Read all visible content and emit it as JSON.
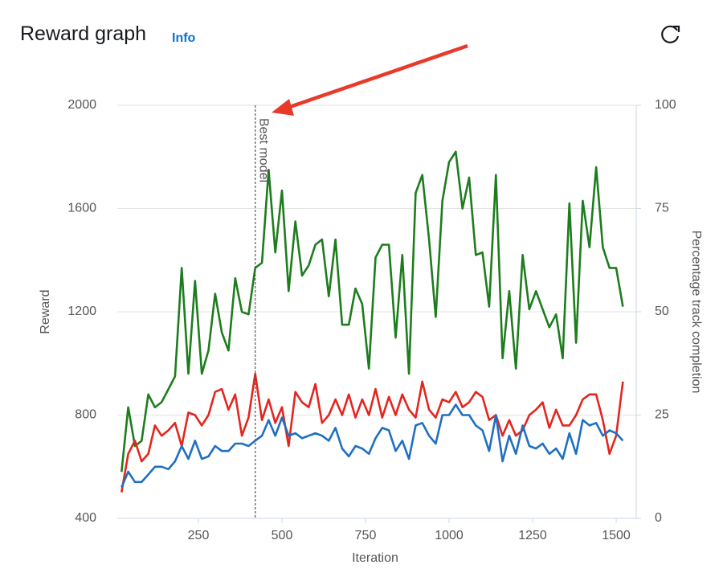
{
  "header": {
    "title": "Reward graph",
    "info": "Info"
  },
  "chart_data": {
    "type": "line",
    "x_label": "Iteration",
    "y_label": "Reward",
    "y2_label": "Percentage track completion",
    "x": [
      20,
      40,
      60,
      80,
      100,
      120,
      140,
      160,
      180,
      200,
      220,
      240,
      260,
      280,
      300,
      320,
      340,
      360,
      380,
      400,
      420,
      440,
      460,
      480,
      500,
      520,
      540,
      560,
      580,
      600,
      620,
      640,
      660,
      680,
      700,
      720,
      740,
      760,
      780,
      800,
      820,
      840,
      860,
      880,
      900,
      920,
      940,
      960,
      980,
      1000,
      1020,
      1040,
      1060,
      1080,
      1100,
      1120,
      1140,
      1160,
      1180,
      1200,
      1220,
      1240,
      1260,
      1280,
      1300,
      1320,
      1340,
      1360,
      1380,
      1400,
      1420,
      1440,
      1460,
      1480,
      1500,
      1520
    ],
    "series": [
      {
        "color": "#1d7d1d",
        "values": [
          580,
          830,
          680,
          700,
          880,
          830,
          850,
          900,
          950,
          1370,
          960,
          1320,
          960,
          1050,
          1270,
          1120,
          1050,
          1330,
          1200,
          1190,
          1370,
          1390,
          1750,
          1430,
          1670,
          1280,
          1550,
          1340,
          1380,
          1460,
          1480,
          1260,
          1480,
          1150,
          1150,
          1290,
          1230,
          980,
          1410,
          1460,
          1460,
          1100,
          1420,
          960,
          1660,
          1730,
          1480,
          1180,
          1630,
          1780,
          1820,
          1600,
          1720,
          1420,
          1430,
          1220,
          1730,
          1020,
          1280,
          980,
          1420,
          1210,
          1280,
          1210,
          1140,
          1190,
          1020,
          1620,
          1080,
          1630,
          1450,
          1760,
          1450,
          1370,
          1370,
          1220
        ]
      },
      {
        "color": "#e3261f",
        "axis": "y2",
        "values": [
          6.3,
          15.6,
          18.8,
          13.8,
          15.6,
          22.5,
          20,
          21.3,
          23.1,
          17.5,
          25.6,
          25,
          22.5,
          25,
          30.6,
          31.3,
          26.3,
          30,
          20,
          24.4,
          35,
          23.8,
          28.8,
          23.1,
          26.9,
          17.5,
          30.6,
          28.1,
          26.9,
          32.5,
          23.1,
          25,
          28.8,
          25,
          30,
          24.4,
          28.8,
          25,
          31.3,
          24.4,
          29.4,
          25,
          30,
          26.3,
          24.4,
          33.1,
          26.3,
          24.4,
          28.8,
          28.1,
          30.6,
          26.9,
          28.1,
          30.6,
          29.4,
          23.8,
          25,
          20,
          23.8,
          20,
          21.3,
          25,
          26.3,
          28.1,
          21.9,
          26.3,
          22.5,
          22.5,
          25,
          28.8,
          30,
          30,
          23.8,
          15.6,
          20,
          33.1
        ]
      },
      {
        "color": "#1f6fc2",
        "axis": "y2",
        "values": [
          7.5,
          11.3,
          8.8,
          8.8,
          10.6,
          12.5,
          12.5,
          11.9,
          13.8,
          17.5,
          14.4,
          18.8,
          14.4,
          15,
          17.5,
          16.3,
          16.3,
          18.1,
          18.1,
          17.5,
          18.8,
          20,
          23.8,
          20,
          24.4,
          20,
          20.6,
          19.4,
          20,
          20.6,
          20,
          18.8,
          21.9,
          16.9,
          15,
          17.5,
          16.9,
          15.6,
          19.4,
          21.9,
          21.3,
          16.3,
          18.8,
          14.4,
          22.5,
          23.1,
          20,
          18.1,
          25,
          25,
          27.5,
          25,
          25,
          22.5,
          21.3,
          16.3,
          25,
          13.8,
          20,
          15.6,
          22.5,
          17.5,
          16.9,
          18.1,
          15.6,
          16.9,
          14.4,
          20.6,
          15.6,
          23.8,
          22.5,
          23.1,
          20,
          21.3,
          20.6,
          18.8
        ]
      }
    ],
    "xlim": [
      0,
      1560
    ],
    "xticks": [
      250,
      500,
      750,
      1000,
      1250,
      1500
    ],
    "ylim": [
      400,
      2000
    ],
    "yticks": [
      400,
      800,
      1200,
      1600,
      2000
    ],
    "y2lim": [
      0,
      100
    ],
    "y2ticks": [
      0,
      25,
      50,
      75,
      100
    ],
    "grid": true,
    "annotation": {
      "x": 420,
      "label": "Best model"
    }
  }
}
